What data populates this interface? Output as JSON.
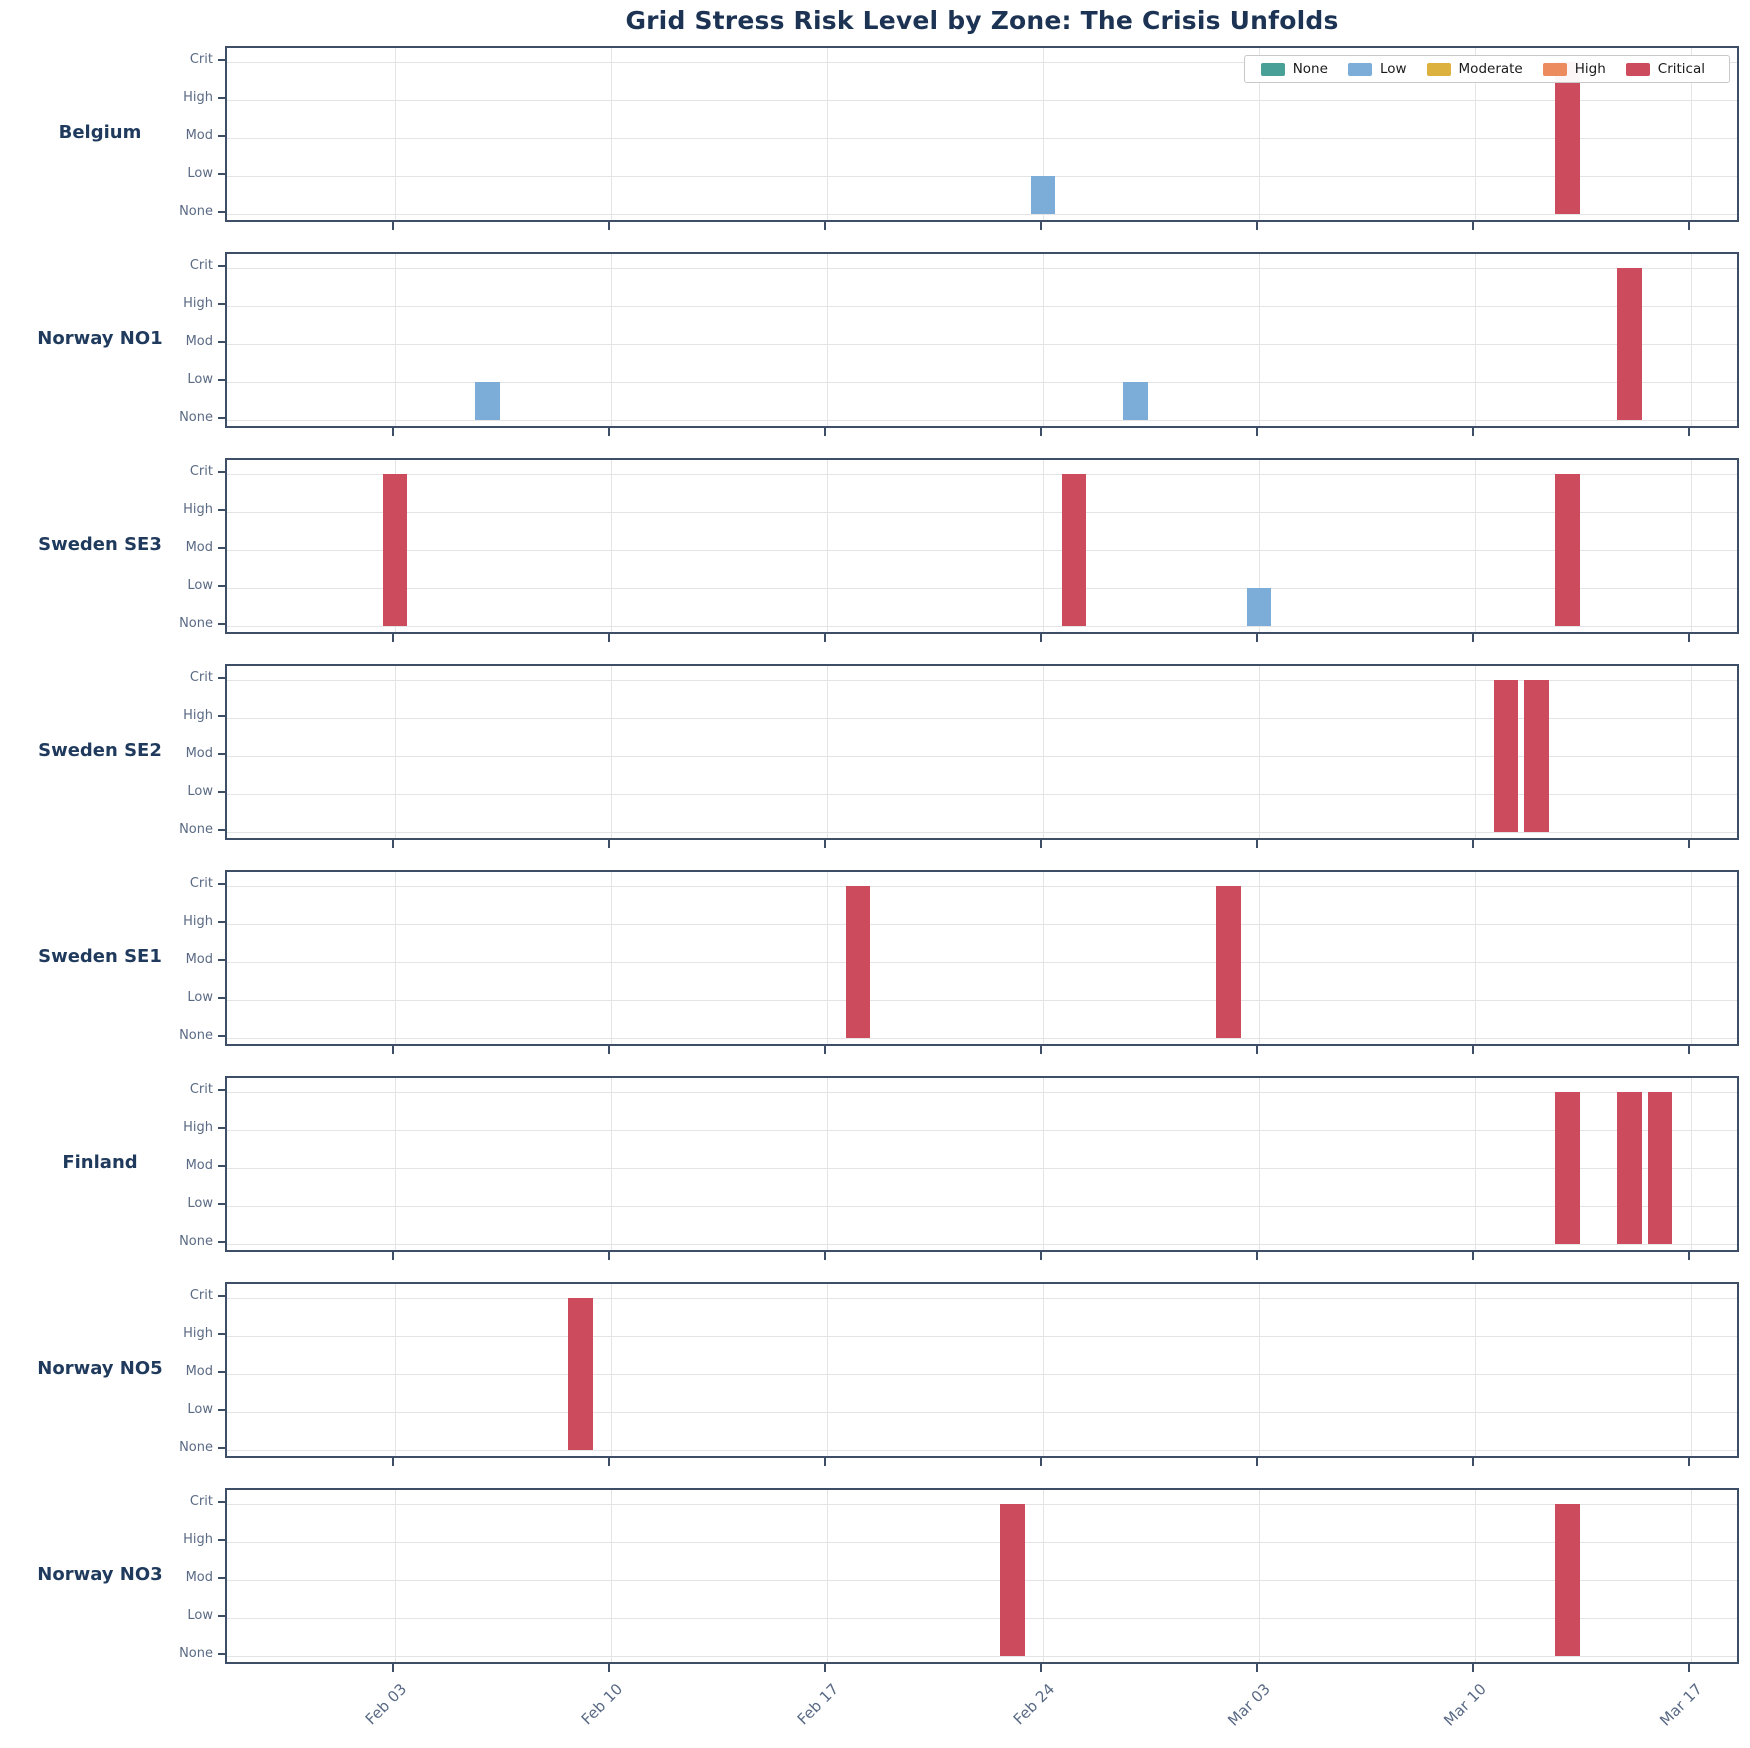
{
  "title": "Grid Stress Risk Level by Zone: The Crisis Unfolds",
  "colors": {
    "title_text": "#1c3354",
    "zone_label_text": "#1f3a5c",
    "tick_text": "#5a6a84",
    "plot_border": "#3e4e66",
    "gridline": "#e4e4e7",
    "none": "#49a097",
    "low": "#7cadd8",
    "moderate": "#ddb13d",
    "high": "#ec8b5e",
    "critical": "#cc4c5e"
  },
  "chart_data": {
    "type": "bar",
    "title": "Grid Stress Risk Level by Zone: The Crisis Unfolds",
    "subtitle": "",
    "grid": true,
    "legend_position": "top-right of first subplot, horizontal",
    "legend": [
      {
        "label": "None",
        "color": "#49a097"
      },
      {
        "label": "Low",
        "color": "#7cadd8"
      },
      {
        "label": "Moderate",
        "color": "#ddb13d"
      },
      {
        "label": "High",
        "color": "#ec8b5e"
      },
      {
        "label": "Critical",
        "color": "#cc4c5e"
      }
    ],
    "y_levels_bottom_to_top": [
      "None",
      "Low",
      "Mod",
      "High",
      "Crit"
    ],
    "y_values": {
      "None": 0,
      "Low": 1,
      "Mod": 2,
      "High": 3,
      "Crit": 4
    },
    "x_ticks": [
      {
        "label": "Feb 03",
        "day": 0
      },
      {
        "label": "Feb 10",
        "day": 7
      },
      {
        "label": "Feb 17",
        "day": 14
      },
      {
        "label": "Feb 24",
        "day": 21
      },
      {
        "label": "Mar 03",
        "day": 28
      },
      {
        "label": "Mar 10",
        "day": 35
      },
      {
        "label": "Mar 17",
        "day": 42
      }
    ],
    "x_range_days": [
      -5.45,
      43.62
    ],
    "bar_width_days": 0.8,
    "zones": [
      {
        "name": "Belgium",
        "events": [
          {
            "date": "Feb 24",
            "day": 21,
            "level": "Low",
            "value": 1
          },
          {
            "date": "Mar 13",
            "day": 38,
            "level": "Critical",
            "value": 4
          }
        ]
      },
      {
        "name": "Norway NO1",
        "events": [
          {
            "date": "Feb 06",
            "day": 3,
            "level": "Low",
            "value": 1
          },
          {
            "date": "Feb 27",
            "day": 24,
            "level": "Low",
            "value": 1
          },
          {
            "date": "Mar 15",
            "day": 40,
            "level": "Critical",
            "value": 4
          }
        ]
      },
      {
        "name": "Sweden SE3",
        "events": [
          {
            "date": "Feb 03",
            "day": 0,
            "level": "Critical",
            "value": 4
          },
          {
            "date": "Feb 25",
            "day": 22,
            "level": "Critical",
            "value": 4
          },
          {
            "date": "Mar 03",
            "day": 28,
            "level": "Low",
            "value": 1
          },
          {
            "date": "Mar 13",
            "day": 38,
            "level": "Critical",
            "value": 4
          }
        ]
      },
      {
        "name": "Sweden SE2",
        "events": [
          {
            "date": "Mar 11",
            "day": 36,
            "level": "Critical",
            "value": 4
          },
          {
            "date": "Mar 12",
            "day": 37,
            "level": "Critical",
            "value": 4
          }
        ]
      },
      {
        "name": "Sweden SE1",
        "events": [
          {
            "date": "Feb 18",
            "day": 15,
            "level": "Critical",
            "value": 4
          },
          {
            "date": "Mar 02",
            "day": 27,
            "level": "Critical",
            "value": 4
          }
        ]
      },
      {
        "name": "Finland",
        "events": [
          {
            "date": "Mar 13",
            "day": 38,
            "level": "Critical",
            "value": 4
          },
          {
            "date": "Mar 15",
            "day": 40,
            "level": "Critical",
            "value": 4
          },
          {
            "date": "Mar 16",
            "day": 41,
            "level": "Critical",
            "value": 4
          }
        ]
      },
      {
        "name": "Norway NO5",
        "events": [
          {
            "date": "Feb 09",
            "day": 6,
            "level": "Critical",
            "value": 4
          }
        ]
      },
      {
        "name": "Norway NO3",
        "events": [
          {
            "date": "Feb 23",
            "day": 20,
            "level": "Critical",
            "value": 4
          },
          {
            "date": "Mar 13",
            "day": 38,
            "level": "Critical",
            "value": 4
          }
        ]
      }
    ]
  }
}
